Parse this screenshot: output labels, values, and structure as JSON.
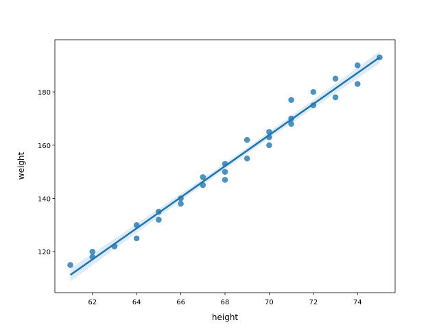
{
  "chart_data": {
    "type": "scatter",
    "x_label": "height",
    "y_label": "weight",
    "x": [
      61,
      62,
      62,
      63,
      64,
      64,
      65,
      65,
      66,
      66,
      67,
      67,
      68,
      68,
      68,
      69,
      69,
      70,
      70,
      70,
      71,
      71,
      71,
      72,
      72,
      73,
      73,
      74,
      74,
      75
    ],
    "values": [
      115,
      120,
      118,
      122,
      130,
      125,
      135,
      132,
      140,
      138,
      148,
      145,
      153,
      150,
      147,
      162,
      155,
      165,
      163,
      160,
      177,
      170,
      168,
      180,
      175,
      185,
      178,
      190,
      183,
      193
    ],
    "color": "#1f77b4",
    "fit_line": true,
    "xlim": [
      60.3,
      75.7
    ],
    "xticks": [
      62,
      64,
      66,
      68,
      70,
      72,
      74
    ],
    "ylim": [
      104.6,
      199.6
    ],
    "yticks": [
      120,
      140,
      160,
      180
    ],
    "grid": false
  }
}
